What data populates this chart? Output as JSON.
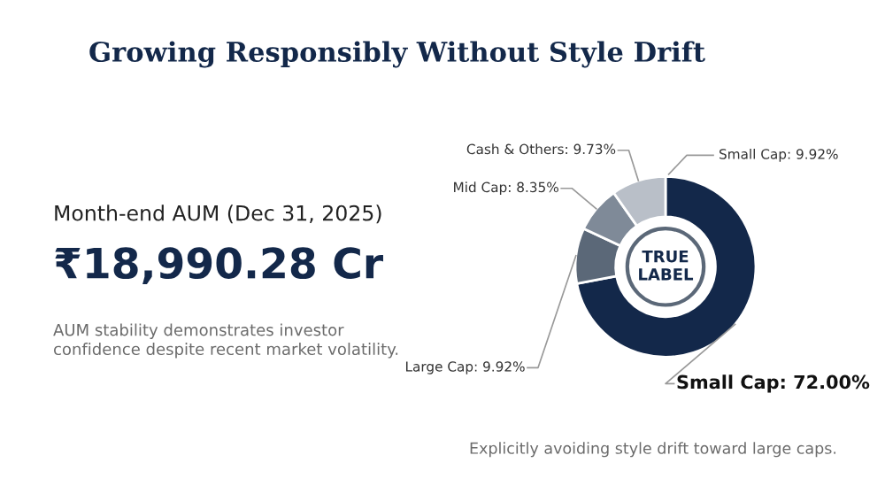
{
  "chart_data": {
    "type": "donut",
    "title": "Growing Responsibly Without Style Drift",
    "categories": [
      "Small Cap",
      "Large Cap",
      "Mid Cap",
      "Cash & Others"
    ],
    "values": [
      72.0,
      9.92,
      8.35,
      9.73
    ],
    "value_labels": [
      "72.00%",
      "9.92%",
      "8.35%",
      "9.73%"
    ],
    "colors": [
      "#13284a",
      "#5b6878",
      "#7f8a98",
      "#b9bfc8"
    ],
    "annotations": [
      "Month-end AUM (Dec 31, 2025)",
      "₹18,990.28 Cr",
      "AUM stability demonstrates investor confidence despite recent market volatility.",
      "Explicitly avoiding style drift toward large caps.",
      "TRUE LABEL",
      "Small Cap: 9.92%"
    ]
  }
}
